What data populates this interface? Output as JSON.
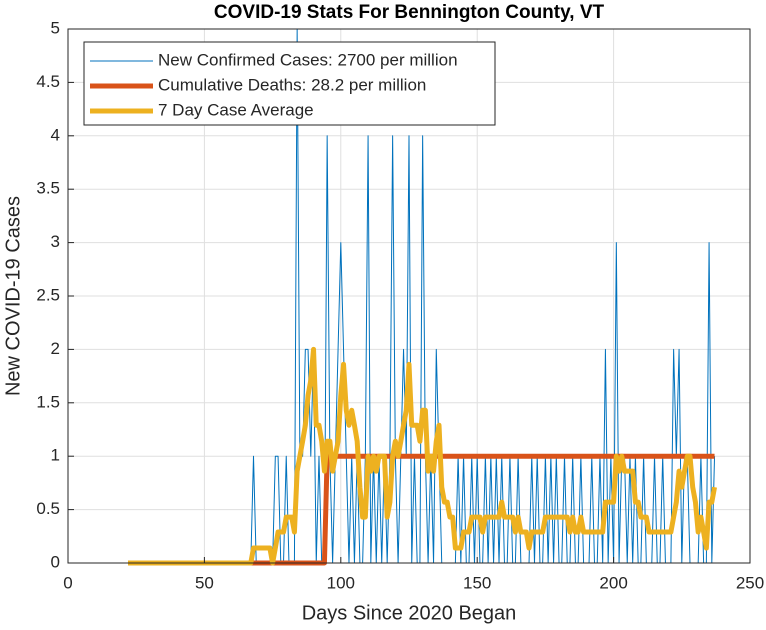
{
  "chart_data": {
    "type": "line",
    "title": "COVID-19 Stats For Bennington County, VT",
    "x_label": "Days Since 2020 Began",
    "y_label": "New COVID-19 Cases",
    "xlim": [
      0,
      250
    ],
    "xticks": [
      0,
      50,
      100,
      150,
      200,
      250
    ],
    "ylim": [
      0,
      5
    ],
    "yticks": [
      0,
      0.5,
      1,
      1.5,
      2,
      2.5,
      3,
      3.5,
      4,
      4.5,
      5
    ],
    "grid": true,
    "legend_position": "upper-left",
    "x": [
      22,
      23,
      24,
      25,
      26,
      27,
      28,
      29,
      30,
      31,
      32,
      33,
      34,
      35,
      36,
      37,
      38,
      39,
      40,
      41,
      42,
      43,
      44,
      45,
      46,
      47,
      48,
      49,
      50,
      51,
      52,
      53,
      54,
      55,
      56,
      57,
      58,
      59,
      60,
      61,
      62,
      63,
      64,
      65,
      66,
      67,
      68,
      69,
      70,
      71,
      72,
      73,
      74,
      75,
      76,
      77,
      78,
      79,
      80,
      81,
      82,
      83,
      84,
      85,
      86,
      87,
      88,
      89,
      90,
      91,
      92,
      93,
      94,
      95,
      96,
      97,
      98,
      99,
      100,
      101,
      102,
      103,
      104,
      105,
      106,
      107,
      108,
      109,
      110,
      111,
      112,
      113,
      114,
      115,
      116,
      117,
      118,
      119,
      120,
      121,
      122,
      123,
      124,
      125,
      126,
      127,
      128,
      129,
      130,
      131,
      132,
      133,
      134,
      135,
      136,
      137,
      138,
      139,
      140,
      141,
      142,
      143,
      144,
      145,
      146,
      147,
      148,
      149,
      150,
      151,
      152,
      153,
      154,
      155,
      156,
      157,
      158,
      159,
      160,
      161,
      162,
      163,
      164,
      165,
      166,
      167,
      168,
      169,
      170,
      171,
      172,
      173,
      174,
      175,
      176,
      177,
      178,
      179,
      180,
      181,
      182,
      183,
      184,
      185,
      186,
      187,
      188,
      189,
      190,
      191,
      192,
      193,
      194,
      195,
      196,
      197,
      198,
      199,
      200,
      201,
      202,
      203,
      204,
      205,
      206,
      207,
      208,
      209,
      210,
      211,
      212,
      213,
      214,
      215,
      216,
      217,
      218,
      219,
      220,
      221,
      222,
      223,
      224,
      225,
      226,
      227,
      228,
      229,
      230,
      231,
      232,
      233,
      234,
      235,
      236,
      237
    ],
    "series": [
      {
        "name": "New Confirmed Cases: 2700 per million",
        "color": "#0072bd",
        "width": 1,
        "values": [
          0,
          0,
          0,
          0,
          0,
          0,
          0,
          0,
          0,
          0,
          0,
          0,
          0,
          0,
          0,
          0,
          0,
          0,
          0,
          0,
          0,
          0,
          0,
          0,
          0,
          0,
          0,
          0,
          0,
          0,
          0,
          0,
          0,
          0,
          0,
          0,
          0,
          0,
          0,
          0,
          0,
          0,
          0,
          0,
          0,
          0,
          1,
          0,
          0,
          0,
          0,
          0,
          0,
          0,
          1,
          1,
          0,
          0,
          1,
          0,
          0,
          0,
          5,
          1,
          1,
          2,
          2,
          1,
          2,
          0,
          1,
          0,
          0,
          4,
          1,
          0,
          1,
          2,
          3,
          2,
          1,
          0,
          1,
          0,
          1,
          0,
          0,
          1,
          4,
          0,
          1,
          0,
          1,
          0,
          1,
          0,
          1,
          4,
          1,
          0,
          1,
          2,
          1,
          4,
          0,
          1,
          0,
          0,
          4,
          1,
          0,
          1,
          0,
          2,
          1,
          0,
          0,
          0,
          0,
          0,
          0,
          1,
          0,
          1,
          0,
          0,
          1,
          0,
          1,
          0,
          0,
          1,
          0,
          1,
          0,
          1,
          0,
          1,
          0,
          0,
          1,
          0,
          0,
          1,
          0,
          0,
          0,
          0,
          1,
          0,
          1,
          0,
          0,
          1,
          0,
          1,
          0,
          1,
          0,
          0,
          1,
          0,
          0,
          1,
          0,
          0,
          1,
          0,
          0,
          0,
          1,
          0,
          0,
          1,
          0,
          2,
          0,
          1,
          0,
          3,
          0,
          1,
          1,
          0,
          1,
          0,
          1,
          0,
          0,
          1,
          0,
          0,
          0,
          1,
          0,
          0,
          1,
          0,
          0,
          0,
          2,
          1,
          2,
          0,
          1,
          1,
          0,
          0,
          0,
          0,
          1,
          0,
          0,
          3,
          0,
          1
        ]
      },
      {
        "name": "Cumulative Deaths: 28.2 per million",
        "color": "#d95319",
        "width": 5,
        "values": [
          0,
          0,
          0,
          0,
          0,
          0,
          0,
          0,
          0,
          0,
          0,
          0,
          0,
          0,
          0,
          0,
          0,
          0,
          0,
          0,
          0,
          0,
          0,
          0,
          0,
          0,
          0,
          0,
          0,
          0,
          0,
          0,
          0,
          0,
          0,
          0,
          0,
          0,
          0,
          0,
          0,
          0,
          0,
          0,
          0,
          0,
          0,
          0,
          0,
          0,
          0,
          0,
          0,
          0,
          0,
          0,
          0,
          0,
          0,
          0,
          0,
          0,
          0,
          0,
          0,
          0,
          0,
          0,
          0,
          0,
          0,
          0,
          0,
          1,
          1,
          1,
          1,
          1,
          1,
          1,
          1,
          1,
          1,
          1,
          1,
          1,
          1,
          1,
          1,
          1,
          1,
          1,
          1,
          1,
          1,
          1,
          1,
          1,
          1,
          1,
          1,
          1,
          1,
          1,
          1,
          1,
          1,
          1,
          1,
          1,
          1,
          1,
          1,
          1,
          1,
          1,
          1,
          1,
          1,
          1,
          1,
          1,
          1,
          1,
          1,
          1,
          1,
          1,
          1,
          1,
          1,
          1,
          1,
          1,
          1,
          1,
          1,
          1,
          1,
          1,
          1,
          1,
          1,
          1,
          1,
          1,
          1,
          1,
          1,
          1,
          1,
          1,
          1,
          1,
          1,
          1,
          1,
          1,
          1,
          1,
          1,
          1,
          1,
          1,
          1,
          1,
          1,
          1,
          1,
          1,
          1,
          1,
          1,
          1,
          1,
          1,
          1,
          1,
          1,
          1,
          1,
          1,
          1,
          1,
          1,
          1,
          1,
          1,
          1,
          1,
          1,
          1,
          1,
          1,
          1,
          1,
          1,
          1,
          1,
          1,
          1,
          1,
          1,
          1,
          1,
          1,
          1,
          1,
          1,
          1,
          1,
          1,
          1,
          1,
          1,
          1
        ]
      },
      {
        "name": "7 Day Case Average",
        "color": "#edb120",
        "width": 5,
        "values": [
          0,
          0,
          0,
          0,
          0,
          0,
          0,
          0,
          0,
          0,
          0,
          0,
          0,
          0,
          0,
          0,
          0,
          0,
          0,
          0,
          0,
          0,
          0,
          0,
          0,
          0,
          0,
          0,
          0,
          0,
          0,
          0,
          0,
          0,
          0,
          0,
          0,
          0,
          0,
          0,
          0,
          0,
          0,
          0,
          0,
          0,
          0.14,
          0.14,
          0.14,
          0.14,
          0.14,
          0.14,
          0.14,
          0,
          0.14,
          0.29,
          0.29,
          0.29,
          0.43,
          0.43,
          0.43,
          0.29,
          0.86,
          1,
          1.14,
          1.29,
          1.57,
          1.71,
          2,
          1.29,
          1.29,
          1.14,
          0.86,
          1.14,
          1.14,
          0.86,
          1,
          1.14,
          1.57,
          1.86,
          1.43,
          1.29,
          1.43,
          1.29,
          1.14,
          0.71,
          0.43,
          0.43,
          1,
          0.86,
          1,
          0.86,
          1,
          1,
          1,
          0.43,
          0.57,
          1,
          1.14,
          1,
          1.14,
          1.29,
          1.43,
          1.86,
          1.29,
          1.29,
          1.29,
          1.14,
          1.43,
          1.43,
          0.86,
          1,
          0.86,
          1.14,
          1.29,
          0.71,
          0.57,
          0.57,
          0.43,
          0.43,
          0.14,
          0.14,
          0.14,
          0.29,
          0.29,
          0.29,
          0.43,
          0.43,
          0.43,
          0.43,
          0.29,
          0.43,
          0.43,
          0.43,
          0.43,
          0.43,
          0.43,
          0.57,
          0.43,
          0.43,
          0.43,
          0.43,
          0.29,
          0.43,
          0.29,
          0.29,
          0.29,
          0.14,
          0.29,
          0.29,
          0.29,
          0.29,
          0.29,
          0.43,
          0.43,
          0.43,
          0.43,
          0.43,
          0.43,
          0.43,
          0.43,
          0.43,
          0.29,
          0.43,
          0.29,
          0.29,
          0.43,
          0.29,
          0.29,
          0.29,
          0.29,
          0.29,
          0.29,
          0.29,
          0.29,
          0.57,
          0.57,
          0.57,
          0.57,
          1,
          0.86,
          1,
          0.86,
          0.86,
          0.86,
          0.86,
          0.57,
          0.57,
          0.43,
          0.43,
          0.43,
          0.29,
          0.29,
          0.29,
          0.29,
          0.29,
          0.29,
          0.29,
          0.29,
          0.29,
          0.43,
          0.57,
          0.86,
          0.71,
          0.86,
          1,
          1,
          0.71,
          0.57,
          0.29,
          0.43,
          0.29,
          0.14,
          0.57,
          0.57,
          0.71
        ]
      }
    ]
  }
}
